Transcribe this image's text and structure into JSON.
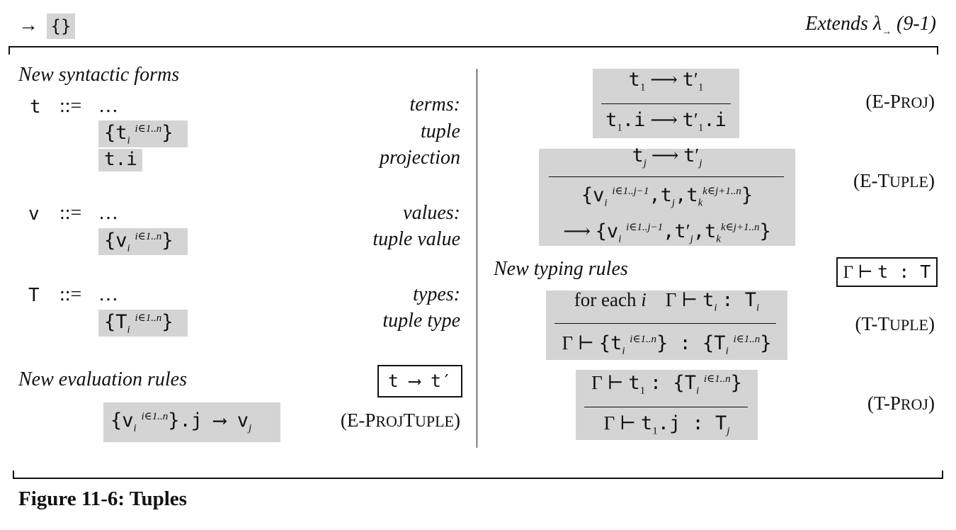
{
  "header": {
    "arrow_left": "→",
    "braces_label": "{}",
    "extends_text": "Extends λ",
    "extends_arrow_sub": "→",
    "extends_ref": "(9-1)"
  },
  "syntax": {
    "heading": "New syntactic forms",
    "terms": {
      "metavar": "t",
      "defsym": "::=",
      "dots": "…",
      "label": "terms:",
      "tuple_label": "tuple",
      "projection_label": "projection"
    },
    "values": {
      "metavar": "v",
      "defsym": "::=",
      "dots": "…",
      "label": "values:",
      "tuple_value_label": "tuple value"
    },
    "types": {
      "metavar": "T",
      "defsym": "::=",
      "dots": "…",
      "label": "types:",
      "tuple_type_label": "tuple type"
    }
  },
  "evaluation": {
    "heading": "New evaluation rules",
    "judgment_box": "t ⟶ t′",
    "rules": {
      "eprojtuple": "(E-ProjTuple)",
      "eproj": "(E-Proj)",
      "etuple": "(E-Tuple)"
    }
  },
  "typing": {
    "heading": "New typing rules",
    "judgment_box": "Γ ⊢ t : T",
    "rules": {
      "ttuple": "(T-Tuple)",
      "tproj": "(T-Proj)"
    },
    "for_each": "for each"
  },
  "caption": "Figure 11-6: Tuples"
}
